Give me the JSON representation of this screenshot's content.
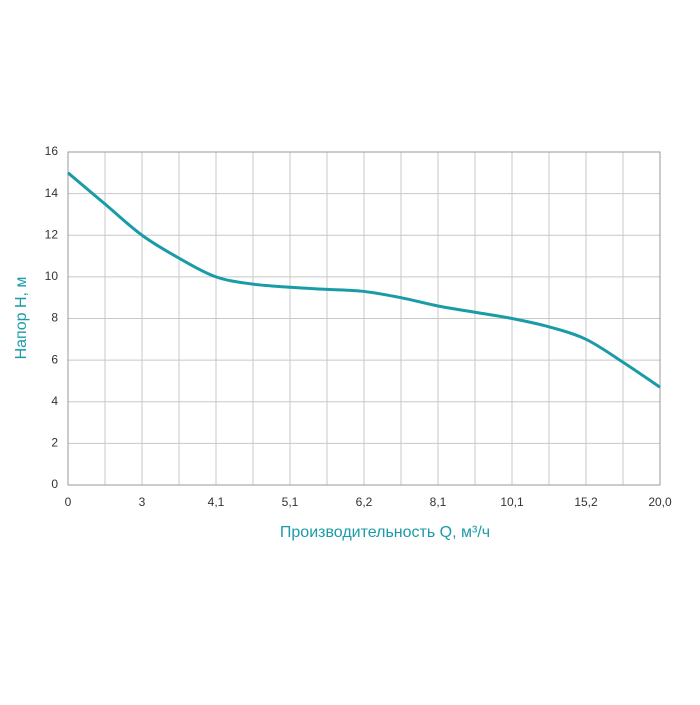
{
  "chart_data": {
    "type": "line",
    "x_label": "Производительность Q, м³/ч",
    "y_label": "Напор H, м",
    "categories": [
      "0",
      null,
      "3",
      null,
      "4,1",
      null,
      "5,1",
      null,
      "6,2",
      null,
      "8,1",
      null,
      "10,1",
      null,
      "15,2",
      null,
      "20,0"
    ],
    "values": [
      15,
      13.5,
      12,
      10.9,
      10,
      9.65,
      9.5,
      9.4,
      9.3,
      9.0,
      8.6,
      8.3,
      8.0,
      7.6,
      7.0,
      5.9,
      4.7
    ],
    "color": "#1a9ba8",
    "ylim": [
      0,
      16
    ],
    "yticks": [
      0,
      2,
      4,
      6,
      8,
      10,
      12,
      14,
      16
    ],
    "grid": true
  }
}
